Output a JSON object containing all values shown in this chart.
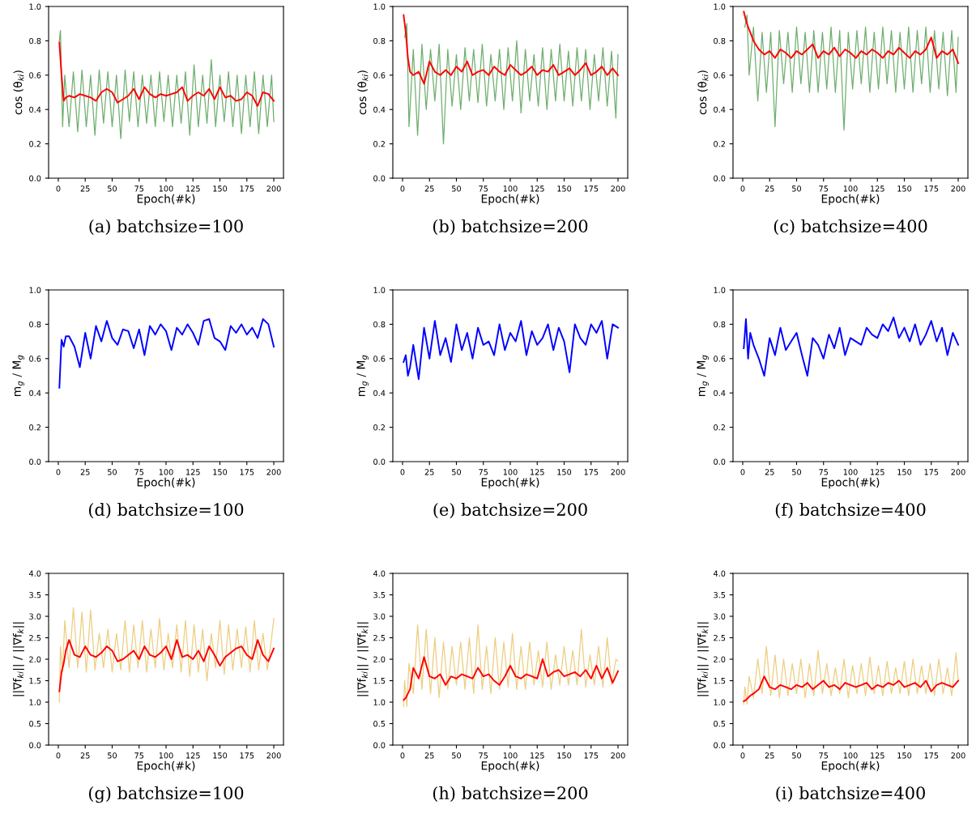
{
  "chart_data": [
    {
      "type": "line",
      "title": "(a) batchsize=100",
      "xlabel": "Epoch(#k)",
      "ylabel": "cos (θ$_{ki}$)",
      "xlim": [
        -9,
        209
      ],
      "xticks": [
        0,
        25,
        50,
        75,
        100,
        125,
        150,
        175,
        200
      ],
      "ylim": [
        0,
        1
      ],
      "yticks": [
        {
          "value": 0,
          "label": "0.0"
        },
        {
          "value": 0.2,
          "label": "0.2"
        },
        {
          "value": 0.4,
          "label": "0.4"
        },
        {
          "value": 0.6,
          "label": "0.6"
        },
        {
          "value": 0.8,
          "label": "0.8"
        },
        {
          "value": 1,
          "label": "1.0"
        }
      ],
      "series": [
        {
          "color": "#4a9a4a",
          "x": [
            1,
            2,
            4,
            6,
            10,
            14,
            18,
            22,
            26,
            30,
            34,
            38,
            42,
            46,
            50,
            54,
            58,
            62,
            66,
            70,
            74,
            78,
            82,
            86,
            90,
            94,
            98,
            102,
            106,
            110,
            114,
            118,
            122,
            126,
            130,
            134,
            138,
            142,
            146,
            150,
            154,
            158,
            162,
            166,
            170,
            174,
            178,
            182,
            186,
            190,
            194,
            198,
            200
          ],
          "values": [
            0.8,
            0.86,
            0.3,
            0.6,
            0.3,
            0.62,
            0.27,
            0.63,
            0.3,
            0.6,
            0.25,
            0.63,
            0.32,
            0.62,
            0.3,
            0.6,
            0.23,
            0.63,
            0.33,
            0.62,
            0.3,
            0.6,
            0.32,
            0.6,
            0.3,
            0.62,
            0.33,
            0.6,
            0.3,
            0.6,
            0.32,
            0.62,
            0.25,
            0.66,
            0.3,
            0.6,
            0.32,
            0.69,
            0.3,
            0.6,
            0.33,
            0.62,
            0.3,
            0.6,
            0.26,
            0.6,
            0.3,
            0.62,
            0.26,
            0.6,
            0.3,
            0.6,
            0.33
          ]
        },
        {
          "color": "#ff0000",
          "x": [
            1,
            3,
            5,
            7,
            10,
            15,
            20,
            25,
            30,
            35,
            40,
            45,
            50,
            55,
            60,
            65,
            70,
            75,
            80,
            85,
            90,
            95,
            100,
            105,
            110,
            115,
            120,
            125,
            130,
            135,
            140,
            145,
            150,
            155,
            160,
            165,
            170,
            175,
            180,
            185,
            190,
            195,
            200
          ],
          "values": [
            0.79,
            0.6,
            0.45,
            0.47,
            0.48,
            0.47,
            0.49,
            0.48,
            0.47,
            0.45,
            0.5,
            0.52,
            0.5,
            0.44,
            0.46,
            0.48,
            0.52,
            0.46,
            0.53,
            0.49,
            0.47,
            0.49,
            0.48,
            0.49,
            0.5,
            0.53,
            0.45,
            0.48,
            0.5,
            0.48,
            0.52,
            0.46,
            0.53,
            0.47,
            0.48,
            0.45,
            0.46,
            0.5,
            0.48,
            0.42,
            0.5,
            0.49,
            0.45
          ]
        }
      ]
    },
    {
      "type": "line",
      "title": "(b) batchsize=200",
      "xlabel": "Epoch(#k)",
      "ylabel": "cos (θ$_{ki}$)",
      "xlim": [
        -9,
        209
      ],
      "xticks": [
        0,
        25,
        50,
        75,
        100,
        125,
        150,
        175,
        200
      ],
      "ylim": [
        0,
        1
      ],
      "yticks": [
        {
          "value": 0,
          "label": "0.0"
        },
        {
          "value": 0.2,
          "label": "0.2"
        },
        {
          "value": 0.4,
          "label": "0.4"
        },
        {
          "value": 0.6,
          "label": "0.6"
        },
        {
          "value": 0.8,
          "label": "0.8"
        },
        {
          "value": 1,
          "label": "1.0"
        }
      ],
      "series": [
        {
          "color": "#4a9a4a",
          "x": [
            2,
            4,
            6,
            10,
            14,
            18,
            22,
            26,
            30,
            34,
            38,
            42,
            46,
            50,
            54,
            58,
            62,
            66,
            70,
            74,
            78,
            82,
            86,
            90,
            94,
            98,
            102,
            106,
            110,
            114,
            118,
            122,
            126,
            130,
            134,
            138,
            142,
            146,
            150,
            154,
            158,
            162,
            166,
            170,
            174,
            178,
            182,
            186,
            190,
            194,
            198,
            200
          ],
          "values": [
            0.82,
            0.9,
            0.3,
            0.75,
            0.25,
            0.78,
            0.4,
            0.75,
            0.45,
            0.78,
            0.2,
            0.75,
            0.42,
            0.72,
            0.4,
            0.76,
            0.45,
            0.75,
            0.44,
            0.78,
            0.42,
            0.72,
            0.45,
            0.75,
            0.4,
            0.76,
            0.45,
            0.8,
            0.38,
            0.75,
            0.45,
            0.72,
            0.42,
            0.76,
            0.4,
            0.75,
            0.45,
            0.78,
            0.45,
            0.74,
            0.42,
            0.76,
            0.45,
            0.75,
            0.4,
            0.72,
            0.45,
            0.76,
            0.42,
            0.74,
            0.35,
            0.72
          ]
        },
        {
          "color": "#ff0000",
          "x": [
            1,
            3,
            5,
            7,
            10,
            15,
            20,
            25,
            30,
            35,
            40,
            45,
            50,
            55,
            60,
            65,
            70,
            75,
            80,
            85,
            90,
            95,
            100,
            105,
            110,
            115,
            120,
            125,
            130,
            135,
            140,
            145,
            150,
            155,
            160,
            165,
            170,
            175,
            180,
            185,
            190,
            195,
            200
          ],
          "values": [
            0.95,
            0.85,
            0.7,
            0.62,
            0.6,
            0.62,
            0.55,
            0.68,
            0.62,
            0.6,
            0.63,
            0.6,
            0.65,
            0.62,
            0.68,
            0.6,
            0.62,
            0.63,
            0.6,
            0.65,
            0.62,
            0.6,
            0.66,
            0.63,
            0.6,
            0.62,
            0.65,
            0.6,
            0.63,
            0.62,
            0.66,
            0.6,
            0.62,
            0.64,
            0.6,
            0.63,
            0.67,
            0.6,
            0.62,
            0.65,
            0.6,
            0.64,
            0.6
          ]
        }
      ]
    },
    {
      "type": "line",
      "title": "(c) batchsize=400",
      "xlabel": "Epoch(#k)",
      "ylabel": "cos (θ$_{ki}$)",
      "xlim": [
        -9,
        209
      ],
      "xticks": [
        0,
        25,
        50,
        75,
        100,
        125,
        150,
        175,
        200
      ],
      "ylim": [
        0,
        1
      ],
      "yticks": [
        {
          "value": 0,
          "label": "0.0"
        },
        {
          "value": 0.2,
          "label": "0.2"
        },
        {
          "value": 0.4,
          "label": "0.4"
        },
        {
          "value": 0.6,
          "label": "0.6"
        },
        {
          "value": 0.8,
          "label": "0.8"
        },
        {
          "value": 1,
          "label": "1.0"
        }
      ],
      "series": [
        {
          "color": "#4a9a4a",
          "x": [
            2,
            4,
            6,
            10,
            14,
            18,
            22,
            26,
            30,
            34,
            38,
            42,
            46,
            50,
            54,
            58,
            62,
            66,
            70,
            74,
            78,
            82,
            86,
            90,
            94,
            98,
            102,
            106,
            110,
            114,
            118,
            122,
            126,
            130,
            134,
            138,
            142,
            146,
            150,
            154,
            158,
            162,
            166,
            170,
            174,
            178,
            182,
            186,
            190,
            194,
            198,
            200
          ],
          "values": [
            0.88,
            0.95,
            0.6,
            0.88,
            0.45,
            0.85,
            0.5,
            0.85,
            0.3,
            0.86,
            0.55,
            0.85,
            0.5,
            0.88,
            0.55,
            0.85,
            0.5,
            0.86,
            0.5,
            0.85,
            0.52,
            0.88,
            0.5,
            0.86,
            0.28,
            0.85,
            0.52,
            0.86,
            0.55,
            0.88,
            0.5,
            0.85,
            0.52,
            0.88,
            0.55,
            0.86,
            0.5,
            0.85,
            0.52,
            0.88,
            0.5,
            0.86,
            0.55,
            0.88,
            0.5,
            0.86,
            0.52,
            0.85,
            0.48,
            0.86,
            0.5,
            0.82
          ]
        },
        {
          "color": "#ff0000",
          "x": [
            1,
            3,
            5,
            7,
            10,
            15,
            20,
            25,
            30,
            35,
            40,
            45,
            50,
            55,
            60,
            65,
            70,
            75,
            80,
            85,
            90,
            95,
            100,
            105,
            110,
            115,
            120,
            125,
            130,
            135,
            140,
            145,
            150,
            155,
            160,
            165,
            170,
            175,
            180,
            185,
            190,
            195,
            200
          ],
          "values": [
            0.97,
            0.92,
            0.88,
            0.85,
            0.8,
            0.75,
            0.72,
            0.74,
            0.7,
            0.75,
            0.73,
            0.7,
            0.74,
            0.72,
            0.75,
            0.78,
            0.7,
            0.74,
            0.72,
            0.76,
            0.71,
            0.75,
            0.73,
            0.7,
            0.74,
            0.72,
            0.75,
            0.73,
            0.7,
            0.74,
            0.72,
            0.76,
            0.73,
            0.7,
            0.74,
            0.72,
            0.75,
            0.82,
            0.7,
            0.74,
            0.72,
            0.75,
            0.67
          ]
        }
      ]
    },
    {
      "type": "line",
      "title": "(d) batchsize=100",
      "xlabel": "Epoch(#k)",
      "ylabel": "m$_{g}$ / M$_{g}$",
      "xlim": [
        -9,
        209
      ],
      "xticks": [
        0,
        25,
        50,
        75,
        100,
        125,
        150,
        175,
        200
      ],
      "ylim": [
        0,
        1
      ],
      "yticks": [
        {
          "value": 0,
          "label": "0.0"
        },
        {
          "value": 0.2,
          "label": "0.2"
        },
        {
          "value": 0.4,
          "label": "0.4"
        },
        {
          "value": 0.6,
          "label": "0.6"
        },
        {
          "value": 0.8,
          "label": "0.8"
        },
        {
          "value": 1,
          "label": "1.0"
        }
      ],
      "series": [
        {
          "color": "#0000ff",
          "x": [
            1,
            3,
            5,
            7,
            10,
            15,
            20,
            25,
            30,
            35,
            40,
            45,
            50,
            55,
            60,
            65,
            70,
            75,
            80,
            85,
            90,
            95,
            100,
            105,
            110,
            115,
            120,
            125,
            130,
            135,
            140,
            145,
            150,
            155,
            160,
            165,
            170,
            175,
            180,
            185,
            190,
            195,
            200
          ],
          "values": [
            0.43,
            0.71,
            0.67,
            0.73,
            0.73,
            0.67,
            0.55,
            0.75,
            0.6,
            0.79,
            0.7,
            0.82,
            0.72,
            0.68,
            0.77,
            0.76,
            0.66,
            0.77,
            0.62,
            0.79,
            0.74,
            0.8,
            0.76,
            0.65,
            0.78,
            0.74,
            0.8,
            0.75,
            0.68,
            0.82,
            0.83,
            0.72,
            0.7,
            0.65,
            0.79,
            0.75,
            0.8,
            0.74,
            0.78,
            0.72,
            0.83,
            0.8,
            0.67
          ]
        }
      ]
    },
    {
      "type": "line",
      "title": "(e) batchsize=200",
      "xlabel": "Epoch(#k)",
      "ylabel": "m$_{g}$ / M$_{g}$",
      "xlim": [
        -9,
        209
      ],
      "xticks": [
        0,
        25,
        50,
        75,
        100,
        125,
        150,
        175,
        200
      ],
      "ylim": [
        0,
        1
      ],
      "yticks": [
        {
          "value": 0,
          "label": "0.0"
        },
        {
          "value": 0.2,
          "label": "0.2"
        },
        {
          "value": 0.4,
          "label": "0.4"
        },
        {
          "value": 0.6,
          "label": "0.6"
        },
        {
          "value": 0.8,
          "label": "0.8"
        },
        {
          "value": 1,
          "label": "1.0"
        }
      ],
      "series": [
        {
          "color": "#0000ff",
          "x": [
            1,
            3,
            5,
            7,
            10,
            15,
            20,
            25,
            30,
            35,
            40,
            45,
            50,
            55,
            60,
            65,
            70,
            75,
            80,
            85,
            90,
            95,
            100,
            105,
            110,
            115,
            120,
            125,
            130,
            135,
            140,
            145,
            150,
            155,
            160,
            165,
            170,
            175,
            180,
            185,
            190,
            195,
            200
          ],
          "values": [
            0.58,
            0.62,
            0.5,
            0.55,
            0.68,
            0.48,
            0.78,
            0.6,
            0.82,
            0.62,
            0.72,
            0.58,
            0.8,
            0.65,
            0.75,
            0.6,
            0.78,
            0.68,
            0.7,
            0.62,
            0.8,
            0.65,
            0.75,
            0.7,
            0.82,
            0.62,
            0.76,
            0.68,
            0.72,
            0.8,
            0.65,
            0.78,
            0.7,
            0.52,
            0.8,
            0.72,
            0.68,
            0.8,
            0.75,
            0.82,
            0.6,
            0.8,
            0.78
          ]
        }
      ]
    },
    {
      "type": "line",
      "title": "(f) batchsize=400",
      "xlabel": "Epoch(#k)",
      "ylabel": "m$_{g}$ / M$_{g}$",
      "xlim": [
        -9,
        209
      ],
      "xticks": [
        0,
        25,
        50,
        75,
        100,
        125,
        150,
        175,
        200
      ],
      "ylim": [
        0,
        1
      ],
      "yticks": [
        {
          "value": 0,
          "label": "0.0"
        },
        {
          "value": 0.2,
          "label": "0.2"
        },
        {
          "value": 0.4,
          "label": "0.4"
        },
        {
          "value": 0.6,
          "label": "0.6"
        },
        {
          "value": 0.8,
          "label": "0.8"
        },
        {
          "value": 1,
          "label": "1.0"
        }
      ],
      "series": [
        {
          "color": "#0000ff",
          "x": [
            1,
            3,
            5,
            7,
            10,
            15,
            20,
            25,
            30,
            35,
            40,
            45,
            50,
            55,
            60,
            65,
            70,
            75,
            80,
            85,
            90,
            95,
            100,
            105,
            110,
            115,
            120,
            125,
            130,
            135,
            140,
            145,
            150,
            155,
            160,
            165,
            170,
            175,
            180,
            185,
            190,
            195,
            200
          ],
          "values": [
            0.66,
            0.83,
            0.6,
            0.75,
            0.68,
            0.6,
            0.5,
            0.72,
            0.62,
            0.78,
            0.65,
            0.7,
            0.75,
            0.62,
            0.5,
            0.72,
            0.68,
            0.6,
            0.74,
            0.66,
            0.78,
            0.62,
            0.72,
            0.7,
            0.68,
            0.78,
            0.74,
            0.72,
            0.8,
            0.76,
            0.84,
            0.72,
            0.78,
            0.7,
            0.8,
            0.68,
            0.74,
            0.82,
            0.7,
            0.78,
            0.62,
            0.75,
            0.68
          ]
        }
      ]
    },
    {
      "type": "line",
      "title": "(g) batchsize=100",
      "xlabel": "Epoch(#k)",
      "ylabel": "||∇f$_{ki}$|| / ||∇f$_{k}$||",
      "xlim": [
        -9,
        209
      ],
      "xticks": [
        0,
        25,
        50,
        75,
        100,
        125,
        150,
        175,
        200
      ],
      "ylim": [
        0,
        4
      ],
      "yticks": [
        {
          "value": 0,
          "label": "0.0"
        },
        {
          "value": 0.5,
          "label": "0.5"
        },
        {
          "value": 1,
          "label": "1.0"
        },
        {
          "value": 1.5,
          "label": "1.5"
        },
        {
          "value": 2,
          "label": "2.0"
        },
        {
          "value": 2.5,
          "label": "2.5"
        },
        {
          "value": 3,
          "label": "3.0"
        },
        {
          "value": 3.5,
          "label": "3.5"
        },
        {
          "value": 4,
          "label": "4.0"
        }
      ],
      "series": [
        {
          "color": "#e8c060",
          "x": [
            1,
            2,
            4,
            6,
            10,
            14,
            18,
            22,
            26,
            30,
            34,
            38,
            42,
            46,
            50,
            54,
            58,
            62,
            66,
            70,
            74,
            78,
            82,
            86,
            90,
            94,
            98,
            102,
            106,
            110,
            114,
            118,
            122,
            126,
            130,
            134,
            138,
            142,
            146,
            150,
            154,
            158,
            162,
            166,
            170,
            174,
            178,
            182,
            186,
            190,
            194,
            198,
            200
          ],
          "values": [
            1.0,
            2.3,
            1.7,
            2.9,
            1.8,
            3.2,
            1.8,
            3.1,
            1.7,
            3.15,
            1.75,
            2.6,
            1.8,
            2.7,
            1.7,
            2.6,
            1.75,
            2.9,
            1.7,
            2.8,
            1.8,
            2.9,
            1.7,
            2.7,
            1.8,
            2.95,
            1.75,
            2.6,
            1.8,
            2.8,
            1.7,
            2.9,
            1.6,
            2.8,
            1.7,
            2.7,
            1.5,
            2.6,
            1.8,
            2.9,
            1.65,
            2.8,
            1.75,
            2.7,
            1.8,
            2.75,
            1.7,
            2.9,
            1.75,
            2.6,
            1.75,
            2.5,
            2.95
          ]
        },
        {
          "color": "#ff0000",
          "x": [
            1,
            3,
            5,
            7,
            10,
            15,
            20,
            25,
            30,
            35,
            40,
            45,
            50,
            55,
            60,
            65,
            70,
            75,
            80,
            85,
            90,
            95,
            100,
            105,
            110,
            115,
            120,
            125,
            130,
            135,
            140,
            145,
            150,
            155,
            160,
            165,
            170,
            175,
            180,
            185,
            190,
            195,
            200
          ],
          "values": [
            1.25,
            1.7,
            1.9,
            2.2,
            2.45,
            2.1,
            2.05,
            2.3,
            2.1,
            2.05,
            2.15,
            2.3,
            2.2,
            1.95,
            2.0,
            2.1,
            2.2,
            2.0,
            2.3,
            2.1,
            2.05,
            2.15,
            2.3,
            2.0,
            2.45,
            2.05,
            2.1,
            2.0,
            2.2,
            1.95,
            2.3,
            2.1,
            1.85,
            2.05,
            2.15,
            2.25,
            2.3,
            2.1,
            2.0,
            2.45,
            2.1,
            1.95,
            2.25
          ]
        }
      ]
    },
    {
      "type": "line",
      "title": "(h) batchsize=200",
      "xlabel": "Epoch(#k)",
      "ylabel": "||∇f$_{ki}$|| / ||∇f$_{k}$||",
      "xlim": [
        -9,
        209
      ],
      "xticks": [
        0,
        25,
        50,
        75,
        100,
        125,
        150,
        175,
        200
      ],
      "ylim": [
        0,
        4
      ],
      "yticks": [
        {
          "value": 0,
          "label": "0.0"
        },
        {
          "value": 0.5,
          "label": "0.5"
        },
        {
          "value": 1,
          "label": "1.0"
        },
        {
          "value": 1.5,
          "label": "1.5"
        },
        {
          "value": 2,
          "label": "2.0"
        },
        {
          "value": 2.5,
          "label": "2.5"
        },
        {
          "value": 3,
          "label": "3.0"
        },
        {
          "value": 3.5,
          "label": "3.5"
        },
        {
          "value": 4,
          "label": "4.0"
        }
      ],
      "series": [
        {
          "color": "#e8c060",
          "x": [
            1,
            2,
            4,
            6,
            10,
            14,
            18,
            22,
            26,
            30,
            34,
            38,
            42,
            46,
            50,
            54,
            58,
            62,
            66,
            70,
            74,
            78,
            82,
            86,
            90,
            94,
            98,
            102,
            106,
            110,
            114,
            118,
            122,
            126,
            130,
            134,
            138,
            142,
            146,
            150,
            154,
            158,
            162,
            166,
            170,
            174,
            178,
            182,
            186,
            190,
            194,
            198,
            200
          ],
          "values": [
            0.9,
            1.5,
            0.9,
            1.9,
            1.2,
            2.8,
            1.3,
            2.7,
            1.2,
            2.5,
            1.1,
            2.4,
            1.3,
            2.3,
            1.4,
            2.4,
            1.3,
            2.5,
            1.2,
            2.8,
            1.3,
            2.3,
            1.2,
            2.5,
            1.3,
            2.4,
            1.35,
            2.6,
            1.3,
            2.3,
            1.3,
            2.4,
            1.4,
            2.2,
            1.35,
            2.4,
            1.3,
            2.1,
            1.4,
            2.3,
            1.4,
            2.2,
            1.4,
            2.7,
            1.35,
            2.1,
            1.4,
            2.3,
            1.35,
            2.5,
            1.4,
            2.0,
            1.95
          ]
        },
        {
          "color": "#ff0000",
          "x": [
            1,
            3,
            5,
            7,
            10,
            15,
            20,
            25,
            30,
            35,
            40,
            45,
            50,
            55,
            60,
            65,
            70,
            75,
            80,
            85,
            90,
            95,
            100,
            105,
            110,
            115,
            120,
            125,
            130,
            135,
            140,
            145,
            150,
            155,
            160,
            165,
            170,
            175,
            180,
            185,
            190,
            195,
            200
          ],
          "values": [
            1.05,
            1.1,
            1.2,
            1.3,
            1.8,
            1.55,
            2.05,
            1.6,
            1.55,
            1.65,
            1.4,
            1.6,
            1.55,
            1.65,
            1.6,
            1.55,
            1.8,
            1.6,
            1.65,
            1.5,
            1.4,
            1.6,
            1.85,
            1.6,
            1.55,
            1.65,
            1.6,
            1.55,
            2.0,
            1.6,
            1.7,
            1.75,
            1.6,
            1.65,
            1.7,
            1.6,
            1.75,
            1.55,
            1.85,
            1.55,
            1.8,
            1.45,
            1.72
          ]
        }
      ]
    },
    {
      "type": "line",
      "title": "(i) batchsize=400",
      "xlabel": "Epoch(#k)",
      "ylabel": "||∇f$_{ki}$|| / ||∇f$_{k}$||",
      "xlim": [
        -9,
        209
      ],
      "xticks": [
        0,
        25,
        50,
        75,
        100,
        125,
        150,
        175,
        200
      ],
      "ylim": [
        0,
        4
      ],
      "yticks": [
        {
          "value": 0,
          "label": "0.0"
        },
        {
          "value": 0.5,
          "label": "0.5"
        },
        {
          "value": 1,
          "label": "1.0"
        },
        {
          "value": 1.5,
          "label": "1.5"
        },
        {
          "value": 2,
          "label": "2.0"
        },
        {
          "value": 2.5,
          "label": "2.5"
        },
        {
          "value": 3,
          "label": "3.0"
        },
        {
          "value": 3.5,
          "label": "3.5"
        },
        {
          "value": 4,
          "label": "4.0"
        }
      ],
      "series": [
        {
          "color": "#e8c060",
          "x": [
            1,
            2,
            4,
            6,
            10,
            14,
            18,
            22,
            26,
            30,
            34,
            38,
            42,
            46,
            50,
            54,
            58,
            62,
            66,
            70,
            74,
            78,
            82,
            86,
            90,
            94,
            98,
            102,
            106,
            110,
            114,
            118,
            122,
            126,
            130,
            134,
            138,
            142,
            146,
            150,
            154,
            158,
            162,
            166,
            170,
            174,
            178,
            182,
            186,
            190,
            194,
            198,
            200
          ],
          "values": [
            0.95,
            1.35,
            0.95,
            1.6,
            1.1,
            2.0,
            1.2,
            2.3,
            1.15,
            2.1,
            1.1,
            2.0,
            1.15,
            1.9,
            1.2,
            2.0,
            1.1,
            1.9,
            1.15,
            2.2,
            1.2,
            1.9,
            1.15,
            1.8,
            1.2,
            2.0,
            1.1,
            1.85,
            1.2,
            1.9,
            1.15,
            2.05,
            1.2,
            1.85,
            1.15,
            1.95,
            1.2,
            1.8,
            1.2,
            1.95,
            1.15,
            2.0,
            1.2,
            1.85,
            1.2,
            1.9,
            1.15,
            2.0,
            1.2,
            1.8,
            1.15,
            2.15,
            1.5
          ]
        },
        {
          "color": "#ff0000",
          "x": [
            1,
            3,
            5,
            7,
            10,
            15,
            20,
            25,
            30,
            35,
            40,
            45,
            50,
            55,
            60,
            65,
            70,
            75,
            80,
            85,
            90,
            95,
            100,
            105,
            110,
            115,
            120,
            125,
            130,
            135,
            140,
            145,
            150,
            155,
            160,
            165,
            170,
            175,
            180,
            185,
            190,
            195,
            200
          ],
          "values": [
            1.02,
            1.05,
            1.1,
            1.15,
            1.2,
            1.3,
            1.6,
            1.35,
            1.3,
            1.4,
            1.35,
            1.3,
            1.4,
            1.35,
            1.45,
            1.3,
            1.4,
            1.5,
            1.35,
            1.4,
            1.3,
            1.45,
            1.4,
            1.35,
            1.4,
            1.45,
            1.3,
            1.4,
            1.35,
            1.45,
            1.4,
            1.5,
            1.35,
            1.4,
            1.45,
            1.35,
            1.5,
            1.25,
            1.4,
            1.45,
            1.4,
            1.35,
            1.5
          ]
        }
      ]
    }
  ]
}
